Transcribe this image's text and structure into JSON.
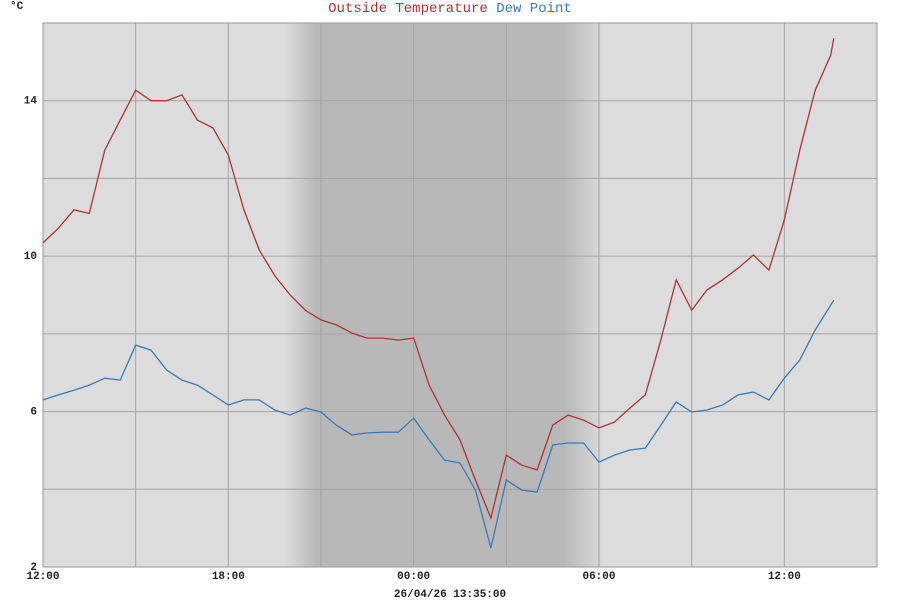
{
  "chart_data": {
    "type": "line",
    "ylabel": "°C",
    "xlabel": "26/04/26 13:35:00",
    "x": [
      0,
      0.5,
      1,
      1.5,
      2,
      2.5,
      3,
      3.5,
      4,
      4.5,
      5,
      5.5,
      6,
      6.5,
      7,
      7.5,
      8,
      8.5,
      9,
      9.5,
      10,
      10.5,
      11,
      11.5,
      12,
      12.5,
      13,
      13.5,
      14,
      14.5,
      15,
      15.5,
      16,
      16.5,
      17,
      17.5,
      18,
      18.5,
      19,
      19.5,
      20,
      20.5,
      21,
      21.5,
      22,
      22.5,
      23,
      23.5,
      24,
      24.5,
      25,
      25.5,
      25.6
    ],
    "series": [
      {
        "name": "Outside Temperature",
        "color": "#b03232",
        "values": [
          10.34,
          10.72,
          11.19,
          11.1,
          12.73,
          13.5,
          14.27,
          14.0,
          14.0,
          14.15,
          13.5,
          13.3,
          12.6,
          11.2,
          10.16,
          9.5,
          9.0,
          8.6,
          8.36,
          8.23,
          8.02,
          7.89,
          7.89,
          7.84,
          7.89,
          6.68,
          5.91,
          5.27,
          4.24,
          3.26,
          4.88,
          4.62,
          4.5,
          5.65,
          5.91,
          5.78,
          5.58,
          5.73,
          6.09,
          6.43,
          7.84,
          9.39,
          8.61,
          9.13,
          9.39,
          9.69,
          10.03,
          9.64,
          10.93,
          12.73,
          14.27,
          15.17,
          15.61
        ]
      },
      {
        "name": "Dew Point",
        "color": "#3a7ab8",
        "values": [
          6.3,
          6.43,
          6.55,
          6.68,
          6.86,
          6.81,
          7.71,
          7.58,
          7.07,
          6.81,
          6.68,
          6.43,
          6.17,
          6.3,
          6.3,
          6.04,
          5.91,
          6.09,
          5.99,
          5.65,
          5.4,
          5.45,
          5.47,
          5.47,
          5.83,
          5.27,
          4.75,
          4.68,
          3.98,
          2.49,
          4.24,
          3.98,
          3.93,
          5.14,
          5.19,
          5.19,
          4.7,
          4.88,
          5.01,
          5.06,
          5.65,
          6.25,
          5.99,
          6.04,
          6.17,
          6.43,
          6.5,
          6.3,
          6.86,
          7.33,
          8.1,
          8.74,
          8.87
        ]
      }
    ],
    "xlim": [
      0,
      27
    ],
    "xticks": [
      {
        "value": 0,
        "label": "12:00"
      },
      {
        "value": 6,
        "label": "18:00"
      },
      {
        "value": 12,
        "label": "00:00"
      },
      {
        "value": 18,
        "label": "06:00"
      },
      {
        "value": 24,
        "label": "12:00"
      }
    ],
    "xgrid": [
      3,
      9,
      15,
      21
    ],
    "ylim": [
      2,
      16
    ],
    "yticks": [
      2,
      6,
      10,
      14
    ],
    "ygrid": [
      4,
      8,
      12
    ],
    "grid": true
  }
}
